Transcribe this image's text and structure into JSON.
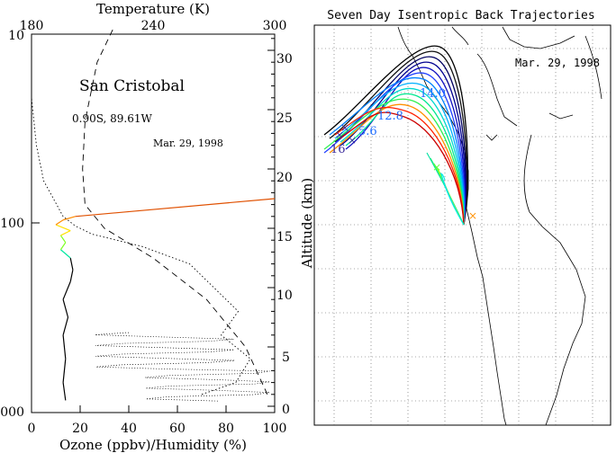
{
  "chart_data": [
    {
      "type": "line",
      "station": "San Cristobal",
      "location": "0.90S, 89.61W",
      "date": "Mar. 29, 1998",
      "x_bottom": {
        "label": "Ozone (ppbv)/Humidity (%)",
        "range": [
          0,
          100
        ],
        "ticks": [
          "0",
          "20",
          "40",
          "60",
          "80",
          "100"
        ]
      },
      "x_top": {
        "label": "Temperature (K)",
        "range": [
          180,
          300
        ],
        "ticks": [
          "180",
          "240",
          "300"
        ]
      },
      "y_left": {
        "label": "",
        "scale": "log",
        "range": [
          1000,
          10
        ],
        "ticks": [
          "10",
          "100",
          "000"
        ]
      },
      "y_right": {
        "label": "Altitude (km)",
        "range": [
          0,
          32
        ],
        "ticks": [
          "0",
          "5",
          "10",
          "15",
          "20",
          "25",
          "30"
        ]
      },
      "series": [
        {
          "style": "solid-rainbow",
          "points": [
            [
              14,
              0.5
            ],
            [
              13,
              2
            ],
            [
              14,
              4
            ],
            [
              13,
              6
            ],
            [
              15,
              7.5
            ],
            [
              13,
              9
            ],
            [
              16,
              10.5
            ],
            [
              17,
              11.5
            ],
            [
              16,
              12.5
            ],
            [
              12,
              13.2
            ],
            [
              14,
              13.8
            ],
            [
              12,
              14.4
            ],
            [
              16,
              14.8
            ],
            [
              10,
              15.3
            ],
            [
              13,
              15.7
            ],
            [
              18,
              16.0
            ],
            [
              100,
              17.5
            ]
          ]
        },
        {
          "style": "dashed",
          "points": [
            [
              97,
              1
            ],
            [
              88,
              5
            ],
            [
              72,
              9
            ],
            [
              50,
              12.5
            ],
            [
              30,
              15
            ],
            [
              22,
              17
            ],
            [
              21,
              20
            ],
            [
              22,
              24
            ],
            [
              27,
              29
            ],
            [
              34,
              32
            ]
          ]
        },
        {
          "style": "dotted",
          "points": [
            [
              70,
              1
            ],
            [
              84,
              2
            ],
            [
              90,
              4
            ],
            [
              78,
              6
            ],
            [
              85,
              8
            ],
            [
              75,
              10
            ],
            [
              65,
              12
            ],
            [
              45,
              13.5
            ],
            [
              25,
              14.5
            ],
            [
              18,
              15.2
            ],
            [
              13,
              16
            ],
            [
              5,
              19
            ],
            [
              2,
              22
            ],
            [
              0,
              26
            ]
          ]
        }
      ]
    },
    {
      "type": "map",
      "title": "Seven Day Isentropic Back Trajectories",
      "date": "Mar. 29, 1998",
      "trajectory_labels": [
        "16",
        "14.0",
        "12.8",
        "5.6"
      ],
      "colors": [
        "#000000",
        "#000080",
        "#1e3cff",
        "#00a0ff",
        "#00e0c0",
        "#40ff40",
        "#ff8c00",
        "#ff0000"
      ]
    }
  ]
}
